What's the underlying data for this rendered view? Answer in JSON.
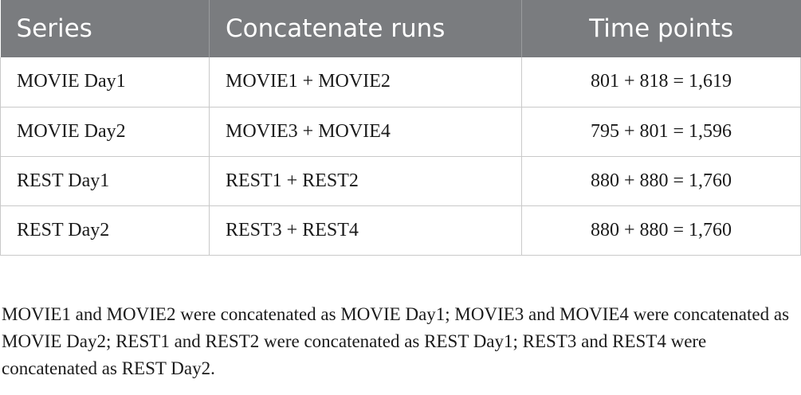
{
  "table": {
    "headers": [
      "Series",
      "Concatenate runs",
      "Time points"
    ],
    "rows": [
      [
        "MOVIE Day1",
        "MOVIE1 + MOVIE2",
        "801 + 818 = 1,619"
      ],
      [
        "MOVIE Day2",
        "MOVIE3 + MOVIE4",
        "795 + 801 = 1,596"
      ],
      [
        "REST Day1",
        "REST1 + REST2",
        "880 + 880 = 1,760"
      ],
      [
        "REST Day2",
        "REST3 + REST4",
        "880 + 880 = 1,760"
      ]
    ]
  },
  "footnote": "MOVIE1 and MOVIE2 were concatenated as MOVIE Day1; MOVIE3 and MOVIE4 were concatenated as MOVIE Day2; REST1 and REST2 were concatenated as REST Day1; REST3 and REST4 were concatenated as REST Day2.",
  "colors": {
    "header_bg": "#7a7c7f",
    "header_text": "#ffffff",
    "grid_line": "#c9c9c9"
  }
}
